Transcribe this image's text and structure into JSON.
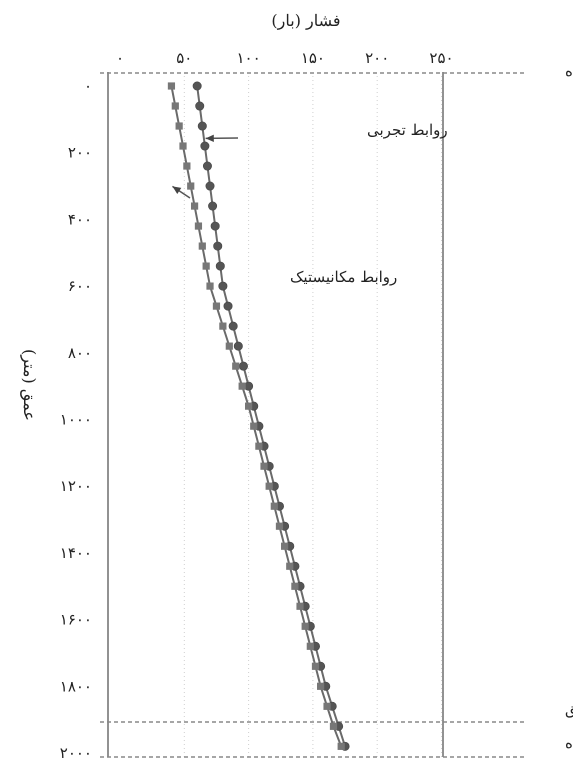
{
  "chart_data": {
    "type": "line",
    "title": "",
    "xlabel": "فشار (بار)",
    "ylabel": "عمق (متر)",
    "xlim": [
      0,
      250
    ],
    "ylim": [
      2000,
      0
    ],
    "x_ticks": [
      "۰",
      "۵۰",
      "۱۰۰",
      "۱۵۰",
      "۲۰۰",
      "۲۵۰"
    ],
    "y_ticks": [
      "۰",
      "۲۰۰",
      "۴۰۰",
      "۶۰۰",
      "۸۰۰",
      "۱۰۰۰",
      "۱۲۰۰",
      "۱۴۰۰",
      "۱۶۰۰",
      "۱۸۰۰",
      "۲۰۰۰"
    ],
    "grid": "vertical-dotted",
    "series": [
      {
        "name": "روابط تجربی",
        "marker": "circle",
        "color": "#555555",
        "depth": [
          0,
          60,
          120,
          180,
          240,
          300,
          360,
          420,
          480,
          540,
          600,
          660,
          720,
          780,
          840,
          900,
          960,
          1020,
          1080,
          1140,
          1200,
          1260,
          1320,
          1380,
          1440,
          1500,
          1560,
          1620,
          1680,
          1740,
          1800,
          1860,
          1920,
          1980
        ],
        "pressure": [
          60,
          62,
          64,
          66,
          68,
          70,
          72,
          74,
          76,
          78,
          80,
          84,
          88,
          92,
          96,
          100,
          104,
          108,
          112,
          116,
          120,
          124,
          128,
          132,
          136,
          140,
          144,
          148,
          152,
          156,
          160,
          165,
          170,
          175
        ]
      },
      {
        "name": "روابط مکانیستیک",
        "marker": "square",
        "color": "#777777",
        "depth": [
          0,
          60,
          120,
          180,
          240,
          300,
          360,
          420,
          480,
          540,
          600,
          660,
          720,
          780,
          840,
          900,
          960,
          1020,
          1080,
          1140,
          1200,
          1260,
          1320,
          1380,
          1440,
          1500,
          1560,
          1620,
          1680,
          1740,
          1800,
          1860,
          1920,
          1980
        ],
        "pressure": [
          40,
          43,
          46,
          49,
          52,
          55,
          58,
          61,
          64,
          67,
          70,
          75,
          80,
          85,
          90,
          95,
          100,
          104,
          108,
          112,
          116,
          120,
          124,
          128,
          132,
          136,
          140,
          144,
          148,
          152,
          156,
          161,
          166,
          172
        ]
      }
    ],
    "reference_lines": [
      {
        "label": "سر چاه",
        "depth": 0
      },
      {
        "label": "نقطه تزریق",
        "depth": 1880
      },
      {
        "label": "ته چاه",
        "depth": 2000
      }
    ],
    "annotations": [
      {
        "text": "روابط تجربی",
        "arrow_to": {
          "pressure": 65,
          "depth": 175
        }
      },
      {
        "text": "روابط مکانیستیک",
        "arrow_to": {
          "pressure": 40,
          "depth": 400
        }
      }
    ]
  }
}
